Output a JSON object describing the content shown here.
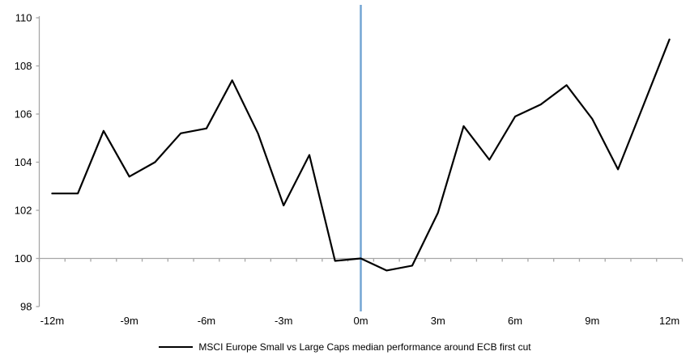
{
  "chart_data": {
    "type": "line",
    "title": "",
    "xlabel": "",
    "ylabel": "",
    "series": [
      {
        "name": "MSCI Europe Small vs Large Caps median performance around ECB first cut",
        "color": "#000000",
        "x": [
          -12,
          -11,
          -10,
          -9,
          -8,
          -7,
          -6,
          -5,
          -4,
          -3,
          -2,
          -1,
          0,
          1,
          2,
          3,
          4,
          5,
          6,
          7,
          8,
          9,
          10,
          11,
          12
        ],
        "values": [
          102.7,
          102.7,
          105.3,
          103.4,
          104.0,
          105.2,
          105.4,
          107.4,
          105.2,
          102.2,
          104.3,
          99.9,
          100.0,
          99.5,
          99.7,
          101.9,
          105.5,
          104.1,
          105.9,
          106.4,
          107.2,
          105.8,
          103.7,
          106.4,
          109.1
        ]
      }
    ],
    "x_tick_labels": [
      "-12m",
      "-9m",
      "-6m",
      "-3m",
      "0m",
      "3m",
      "6m",
      "9m",
      "12m"
    ],
    "x_tick_values": [
      -12,
      -9,
      -6,
      -3,
      0,
      3,
      6,
      9,
      12
    ],
    "y_tick_values": [
      98,
      100,
      102,
      104,
      106,
      108,
      110
    ],
    "ylim": [
      98,
      110
    ],
    "xlim": [
      -12.5,
      12.5
    ],
    "x_axis_cross_value": 100,
    "grid": false,
    "legend_position": "bottom",
    "axis_color": "#A6A6A6",
    "event_line": {
      "x": 0,
      "color": "#74A5D4"
    }
  }
}
